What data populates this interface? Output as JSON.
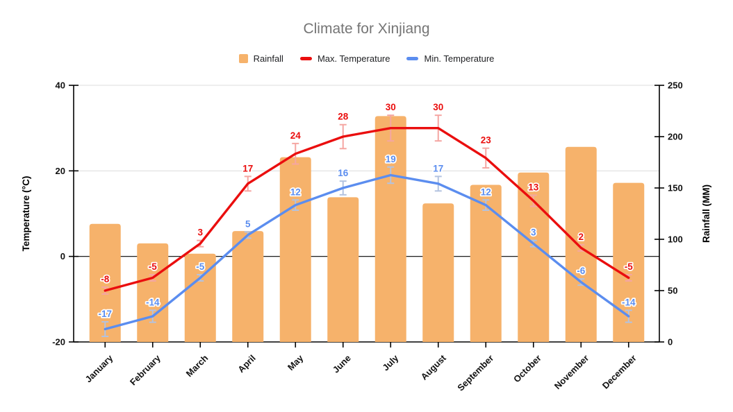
{
  "chart_data": {
    "type": "combo",
    "title": "Climate for Xinjiang",
    "categories": [
      "January",
      "February",
      "March",
      "April",
      "May",
      "June",
      "July",
      "August",
      "September",
      "October",
      "November",
      "December"
    ],
    "series": [
      {
        "name": "Rainfall",
        "type": "bar",
        "axis": "right",
        "color": "#f6b26b",
        "values": [
          115,
          96,
          86,
          108,
          180,
          141,
          220,
          135,
          153,
          165,
          190,
          155
        ]
      },
      {
        "name": "Max. Temperature",
        "type": "line",
        "axis": "left",
        "color": "#ea0e0e",
        "error_bar_color": "#f5a6a2",
        "values": [
          -8,
          -5,
          3,
          17,
          24,
          28,
          30,
          30,
          23,
          13,
          2,
          -5
        ]
      },
      {
        "name": "Min. Temperature",
        "type": "line",
        "axis": "left",
        "color": "#5b8def",
        "error_bar_color": "#b3c3e0",
        "values": [
          -17,
          -14,
          -5,
          5,
          12,
          16,
          19,
          17,
          12,
          3,
          -6,
          -14
        ]
      }
    ],
    "left_axis": {
      "title": "Temperature (°C)",
      "min": -20,
      "max": 40,
      "ticks": [
        40,
        20,
        0,
        -20
      ]
    },
    "right_axis": {
      "title": "Rainfall (MM)",
      "min": 0,
      "max": 250,
      "ticks": [
        250,
        200,
        150,
        100,
        50,
        0
      ]
    },
    "point_labels": true,
    "error_bars": "approx ±10% whiskers on both temperature series",
    "legend_position": "top",
    "grid": "horizontal gridlines at 40 and 20 (light gray), 0 (black); x labels rotated 45°"
  }
}
